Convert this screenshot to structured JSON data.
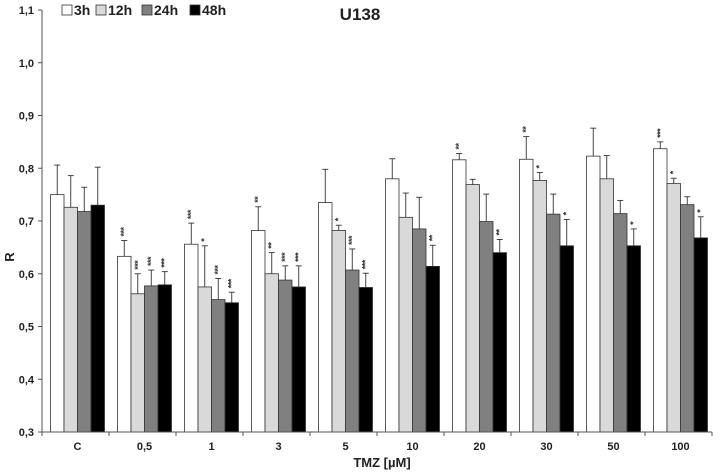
{
  "chart_data": {
    "type": "bar",
    "title": "U138",
    "xlabel": "TMZ [µM]",
    "ylabel": "R",
    "ylim": [
      0.3,
      1.1
    ],
    "yticks": [
      0.3,
      0.4,
      0.5,
      0.6,
      0.7,
      0.8,
      0.9,
      1.0,
      1.1
    ],
    "ytick_labels": [
      "0,3",
      "0,4",
      "0,5",
      "0,6",
      "0,7",
      "0,8",
      "0,9",
      "1,0",
      "1,1"
    ],
    "categories": [
      "C",
      "0,5",
      "1",
      "3",
      "5",
      "10",
      "20",
      "30",
      "50",
      "100"
    ],
    "grid": false,
    "legend_position": "top-left",
    "series": [
      {
        "name": "3h",
        "color": "#ffffff",
        "values": [
          0.75,
          0.633,
          0.656,
          0.682,
          0.735,
          0.78,
          0.816,
          0.817,
          0.823,
          0.837
        ],
        "errors": [
          0.056,
          0.03,
          0.04,
          0.045,
          0.063,
          0.038,
          0.012,
          0.043,
          0.053,
          0.013
        ],
        "significance": [
          "",
          "***",
          "***",
          "**",
          "",
          "",
          "**",
          "**",
          "",
          "***"
        ]
      },
      {
        "name": "12h",
        "color": "#d9d9d9",
        "values": [
          0.726,
          0.562,
          0.575,
          0.6,
          0.682,
          0.707,
          0.769,
          0.777,
          0.78,
          0.771
        ],
        "errors": [
          0.06,
          0.038,
          0.078,
          0.04,
          0.01,
          0.046,
          0.01,
          0.015,
          0.044,
          0.01
        ],
        "significance": [
          "",
          "***",
          "*",
          "**",
          "*",
          "",
          "",
          "*",
          "",
          "*"
        ]
      },
      {
        "name": "24h",
        "color": "#808080",
        "values": [
          0.718,
          0.577,
          0.551,
          0.588,
          0.607,
          0.685,
          0.699,
          0.713,
          0.714,
          0.731
        ],
        "errors": [
          0.046,
          0.03,
          0.04,
          0.027,
          0.04,
          0.06,
          0.052,
          0.038,
          0.025,
          0.015
        ],
        "significance": [
          "",
          "***",
          "***",
          "***",
          "***",
          "",
          "",
          "",
          "",
          ""
        ]
      },
      {
        "name": "48h",
        "color": "#000000",
        "values": [
          0.73,
          0.579,
          0.545,
          0.575,
          0.574,
          0.614,
          0.64,
          0.653,
          0.653,
          0.668
        ],
        "errors": [
          0.072,
          0.025,
          0.02,
          0.04,
          0.027,
          0.04,
          0.025,
          0.05,
          0.032,
          0.04
        ],
        "significance": [
          "",
          "***",
          "***",
          "***",
          "***",
          "**",
          "**",
          "*",
          "*",
          "*"
        ]
      }
    ]
  }
}
